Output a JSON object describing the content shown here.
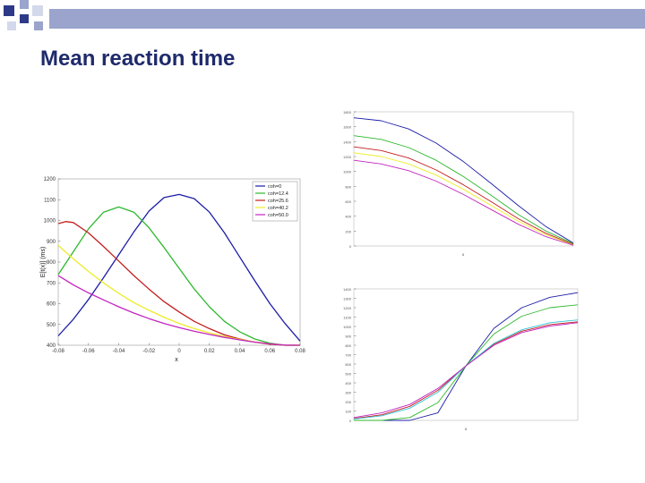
{
  "slide": {
    "title": "Mean reaction time",
    "colors": {
      "title": "#1f2a6b",
      "deco_dark": "#2e3a87",
      "deco_mid": "#9aa4cc",
      "deco_light": "#d3d8ea"
    }
  },
  "chart_data": [
    {
      "type": "line",
      "title": "",
      "xlabel": "x",
      "ylabel": "E[t(x)] (ms)",
      "xlim": [
        -0.08,
        0.08
      ],
      "ylim": [
        400,
        1200
      ],
      "x_ticks": [
        "-0.08",
        "-0.06",
        "-0.04",
        "-0.02",
        "0",
        "0.02",
        "0.04",
        "0.06",
        "0.08"
      ],
      "y_ticks": [
        "400",
        "500",
        "600",
        "700",
        "800",
        "900",
        "1000",
        "1100",
        "1200"
      ],
      "legend_position": "top-right",
      "series": [
        {
          "name": "coh=0",
          "color": "#1c1ca8",
          "x": [
            -0.08,
            -0.07,
            -0.06,
            -0.05,
            -0.04,
            -0.03,
            -0.02,
            -0.01,
            0,
            0.01,
            0.02,
            0.03,
            0.04,
            0.05,
            0.06,
            0.07,
            0.08
          ],
          "y": [
            445,
            525,
            620,
            725,
            835,
            945,
            1045,
            1110,
            1125,
            1105,
            1040,
            940,
            825,
            710,
            600,
            505,
            420
          ]
        },
        {
          "name": "coh=12.4",
          "color": "#2db82d",
          "x": [
            -0.08,
            -0.07,
            -0.06,
            -0.05,
            -0.04,
            -0.03,
            -0.02,
            -0.01,
            0,
            0.01,
            0.02,
            0.03,
            0.04,
            0.05,
            0.06,
            0.07,
            0.08
          ],
          "y": [
            740,
            850,
            960,
            1040,
            1065,
            1040,
            965,
            870,
            770,
            670,
            585,
            515,
            465,
            430,
            410,
            400,
            400
          ]
        },
        {
          "name": "coh=25.6",
          "color": "#c41e1e",
          "x": [
            -0.08,
            -0.075,
            -0.07,
            -0.06,
            -0.05,
            -0.04,
            -0.03,
            -0.02,
            -0.01,
            0,
            0.01,
            0.02,
            0.03,
            0.04,
            0.05,
            0.06,
            0.07,
            0.08
          ],
          "y": [
            985,
            995,
            990,
            940,
            875,
            805,
            735,
            670,
            610,
            560,
            515,
            480,
            450,
            430,
            415,
            405,
            400,
            400
          ]
        },
        {
          "name": "coh=40.2",
          "color": "#ecec28",
          "x": [
            -0.08,
            -0.07,
            -0.06,
            -0.05,
            -0.04,
            -0.03,
            -0.02,
            -0.01,
            0,
            0.01,
            0.02,
            0.03,
            0.04,
            0.05,
            0.06,
            0.07,
            0.08
          ],
          "y": [
            880,
            815,
            755,
            700,
            650,
            605,
            568,
            535,
            505,
            480,
            460,
            442,
            428,
            416,
            407,
            401,
            400
          ]
        },
        {
          "name": "coh=50.0",
          "color": "#c224c2",
          "x": [
            -0.08,
            -0.07,
            -0.06,
            -0.05,
            -0.04,
            -0.03,
            -0.02,
            -0.01,
            0,
            0.01,
            0.02,
            0.03,
            0.04,
            0.05,
            0.06,
            0.07,
            0.08
          ],
          "y": [
            735,
            690,
            652,
            618,
            585,
            555,
            528,
            505,
            485,
            467,
            452,
            438,
            426,
            415,
            407,
            401,
            400
          ]
        }
      ]
    },
    {
      "type": "line",
      "title": "",
      "xlabel": "x",
      "ylabel": "",
      "xlim": [
        -0.12,
        0.12
      ],
      "ylim": [
        0,
        1800
      ],
      "x_ticks": [],
      "y_ticks": [
        "0",
        "200",
        "400",
        "600",
        "800",
        "1000",
        "1200",
        "1400",
        "1600",
        "1800"
      ],
      "legend_position": "top-right",
      "series": [
        {
          "name": "",
          "color": "#1c1ca8",
          "x": [
            -0.12,
            -0.09,
            -0.06,
            -0.03,
            0,
            0.03,
            0.06,
            0.09,
            0.12
          ],
          "y": [
            1720,
            1680,
            1570,
            1380,
            1130,
            840,
            540,
            260,
            40
          ]
        },
        {
          "name": "",
          "color": "#2db82d",
          "x": [
            -0.12,
            -0.09,
            -0.06,
            -0.03,
            0,
            0.03,
            0.06,
            0.09,
            0.12
          ],
          "y": [
            1480,
            1430,
            1320,
            1150,
            930,
            680,
            420,
            200,
            30
          ]
        },
        {
          "name": "",
          "color": "#c41e1e",
          "x": [
            -0.12,
            -0.09,
            -0.06,
            -0.03,
            0,
            0.03,
            0.06,
            0.09,
            0.12
          ],
          "y": [
            1330,
            1280,
            1180,
            1020,
            820,
            595,
            365,
            170,
            20
          ]
        },
        {
          "name": "",
          "color": "#ecec28",
          "x": [
            -0.12,
            -0.09,
            -0.06,
            -0.03,
            0,
            0.03,
            0.06,
            0.09,
            0.12
          ],
          "y": [
            1250,
            1200,
            1100,
            950,
            760,
            545,
            330,
            150,
            15
          ]
        },
        {
          "name": "",
          "color": "#c224c2",
          "x": [
            -0.12,
            -0.09,
            -0.06,
            -0.03,
            0,
            0.03,
            0.06,
            0.09,
            0.12
          ],
          "y": [
            1150,
            1100,
            1010,
            870,
            690,
            490,
            290,
            125,
            10
          ]
        }
      ]
    },
    {
      "type": "line",
      "title": "",
      "xlabel": "x",
      "ylabel": "",
      "xlim": [
        -0.1,
        0.1
      ],
      "ylim": [
        0,
        1400
      ],
      "x_ticks": [],
      "y_ticks": [
        "0",
        "100",
        "200",
        "300",
        "400",
        "500",
        "600",
        "700",
        "800",
        "900",
        "1000",
        "1100",
        "1200",
        "1300",
        "1400"
      ],
      "legend_position": "top-left",
      "series": [
        {
          "name": "",
          "color": "#1c1ca8",
          "x": [
            -0.1,
            -0.075,
            -0.05,
            -0.025,
            0,
            0.025,
            0.05,
            0.075,
            0.1
          ],
          "y": [
            0,
            0,
            0,
            80,
            580,
            980,
            1200,
            1310,
            1360
          ]
        },
        {
          "name": "",
          "color": "#2db82d",
          "x": [
            -0.1,
            -0.075,
            -0.05,
            -0.025,
            0,
            0.025,
            0.05,
            0.075,
            0.1
          ],
          "y": [
            0,
            0,
            30,
            190,
            580,
            920,
            1110,
            1200,
            1230
          ]
        },
        {
          "name": "",
          "color": "#c41e1e",
          "x": [
            -0.1,
            -0.075,
            -0.05,
            -0.025,
            0,
            0.025,
            0.05,
            0.075,
            0.1
          ],
          "y": [
            20,
            60,
            150,
            320,
            580,
            810,
            950,
            1020,
            1050
          ]
        },
        {
          "name": "",
          "color": "#2ec4d8",
          "x": [
            -0.1,
            -0.075,
            -0.05,
            -0.025,
            0,
            0.025,
            0.05,
            0.075,
            0.1
          ],
          "y": [
            15,
            50,
            130,
            300,
            580,
            820,
            965,
            1040,
            1070
          ]
        },
        {
          "name": "",
          "color": "#c224c2",
          "x": [
            -0.1,
            -0.075,
            -0.05,
            -0.025,
            0,
            0.025,
            0.05,
            0.075,
            0.1
          ],
          "y": [
            30,
            80,
            170,
            340,
            580,
            800,
            935,
            1005,
            1040
          ]
        }
      ]
    }
  ]
}
